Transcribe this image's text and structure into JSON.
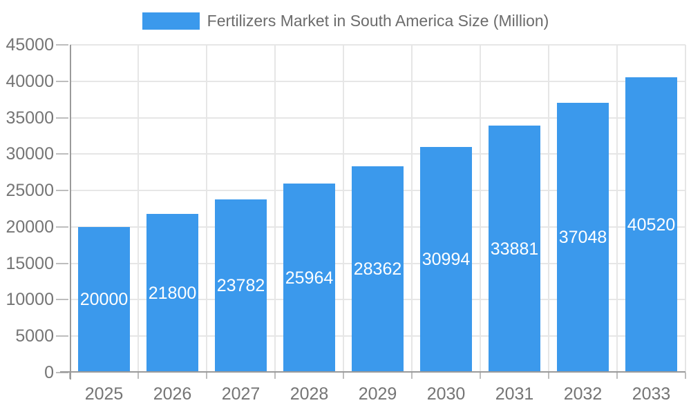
{
  "legend": {
    "label": "Fertilizers Market in South America Size (Million)"
  },
  "chart_data": {
    "type": "bar",
    "title": "Fertilizers Market in South America Size (Million)",
    "categories": [
      "2025",
      "2026",
      "2027",
      "2028",
      "2029",
      "2030",
      "2031",
      "2032",
      "2033"
    ],
    "series": [
      {
        "name": "Fertilizers Market in South America Size (Million)",
        "values": [
          20000,
          21800,
          23782,
          25964,
          28362,
          30994,
          33881,
          37048,
          40520
        ]
      }
    ],
    "value_labels": [
      "20000",
      "21800",
      "23782",
      "25964",
      "28362",
      "30994",
      "33881",
      "37048",
      "40520"
    ],
    "xlabel": "",
    "ylabel": "",
    "ylim": [
      0,
      45000
    ],
    "yticks": [
      0,
      5000,
      10000,
      15000,
      20000,
      25000,
      30000,
      35000,
      40000,
      45000
    ],
    "grid": true,
    "legend_position": "top",
    "bar_width_fraction": 0.75,
    "colors": {
      "bar": "#3b99ec",
      "axis": "#9a9a9a",
      "gridline": "#e6e6e6",
      "tick": "#bdbdbd",
      "axis_label": "#757575",
      "legend_text": "#6b6b6b",
      "bar_label": "#ffffff",
      "background": "#ffffff"
    }
  }
}
